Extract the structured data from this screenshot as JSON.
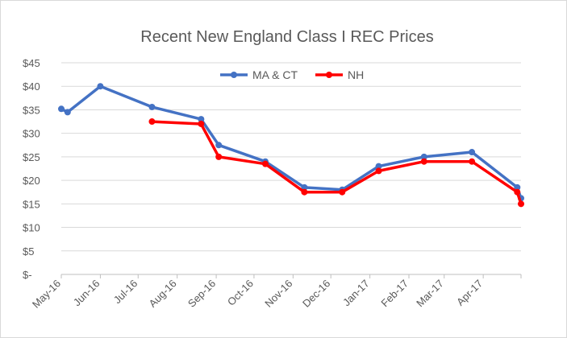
{
  "chart_data": {
    "type": "line",
    "title": "Recent New England Class I REC Prices",
    "xlabel": "",
    "ylabel": "",
    "x_axis": {
      "type": "date",
      "range": [
        "2016-05-01",
        "2017-05-01"
      ],
      "tick_labels": [
        "May-16",
        "Jun-16",
        "Jul-16",
        "Aug-16",
        "Sep-16",
        "Oct-16",
        "Nov-16",
        "Dec-16",
        "Jan-17",
        "Feb-17",
        "Mar-17",
        "Apr-17"
      ]
    },
    "y_axis": {
      "range": [
        0,
        45
      ],
      "ticks": [
        0,
        5,
        10,
        15,
        20,
        25,
        30,
        35,
        40,
        45
      ],
      "tick_labels": [
        "$-",
        "$5",
        "$10",
        "$15",
        "$20",
        "$25",
        "$30",
        "$35",
        "$40",
        "$45"
      ]
    },
    "grid": "horizontal",
    "legend": "top-center",
    "series": [
      {
        "name": "MA & CT",
        "color": "#4472c4",
        "points": [
          {
            "x": "2016-05-01",
            "y": 35.2
          },
          {
            "x": "2016-05-06",
            "y": 34.5
          },
          {
            "x": "2016-06-01",
            "y": 40.0
          },
          {
            "x": "2016-07-12",
            "y": 35.6
          },
          {
            "x": "2016-08-20",
            "y": 33.0
          },
          {
            "x": "2016-09-03",
            "y": 27.5
          },
          {
            "x": "2016-10-10",
            "y": 24.0
          },
          {
            "x": "2016-11-10",
            "y": 18.5
          },
          {
            "x": "2016-12-10",
            "y": 18.0
          },
          {
            "x": "2017-01-08",
            "y": 23.0
          },
          {
            "x": "2017-02-13",
            "y": 25.0
          },
          {
            "x": "2017-03-23",
            "y": 26.0
          },
          {
            "x": "2017-04-28",
            "y": 18.5
          },
          {
            "x": "2017-05-01",
            "y": 16.2
          }
        ]
      },
      {
        "name": "NH",
        "color": "#ff0000",
        "points": [
          {
            "x": "2016-07-12",
            "y": 32.5
          },
          {
            "x": "2016-08-20",
            "y": 32.0
          },
          {
            "x": "2016-09-03",
            "y": 25.0
          },
          {
            "x": "2016-10-10",
            "y": 23.5
          },
          {
            "x": "2016-11-10",
            "y": 17.5
          },
          {
            "x": "2016-12-10",
            "y": 17.5
          },
          {
            "x": "2017-01-08",
            "y": 22.0
          },
          {
            "x": "2017-02-13",
            "y": 24.0
          },
          {
            "x": "2017-03-23",
            "y": 24.0
          },
          {
            "x": "2017-04-28",
            "y": 17.5
          },
          {
            "x": "2017-05-01",
            "y": 15.0
          }
        ]
      }
    ]
  }
}
